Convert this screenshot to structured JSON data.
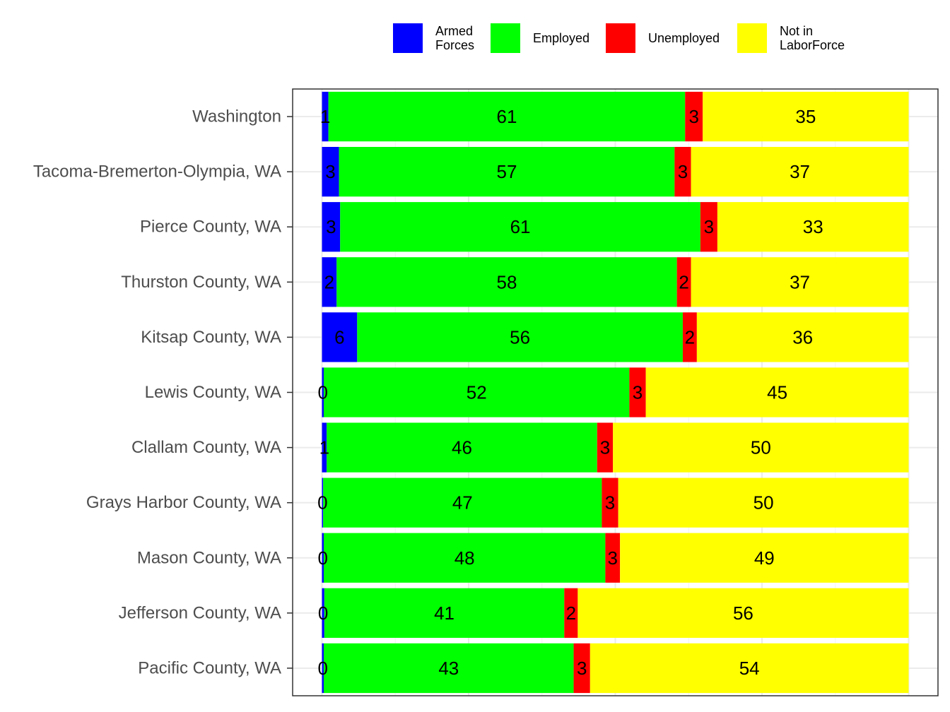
{
  "chart_data": {
    "type": "bar",
    "orientation": "horizontal",
    "stacked": true,
    "categories": [
      "Washington",
      "Tacoma-Bremerton-Olympia, WA",
      "Pierce County, WA",
      "Thurston County, WA",
      "Kitsap County, WA",
      "Lewis County, WA",
      "Clallam County, WA",
      "Grays Harbor County, WA",
      "Mason County, WA",
      "Jefferson County, WA",
      "Pacific County, WA"
    ],
    "series": [
      {
        "name": "Armed Forces",
        "legend_lines": [
          "Armed",
          "Forces"
        ],
        "color": "#0000ff",
        "values": [
          1.1,
          2.9,
          3.1,
          2.5,
          6.0,
          0.3,
          0.8,
          0.2,
          0.3,
          0.4,
          0.3
        ],
        "labels": [
          "1",
          "3",
          "3",
          "2",
          "6",
          "0",
          "1",
          "0",
          "0",
          "0",
          "0"
        ]
      },
      {
        "name": "Employed",
        "legend_lines": [
          "Employed"
        ],
        "color": "#00ff00",
        "values": [
          60.8,
          57.2,
          61.4,
          58.0,
          55.5,
          52.1,
          46.1,
          47.5,
          48.0,
          40.9,
          42.6
        ],
        "labels": [
          "61",
          "57",
          "61",
          "58",
          "56",
          "52",
          "46",
          "47",
          "48",
          "41",
          "43"
        ]
      },
      {
        "name": "Unemployed",
        "legend_lines": [
          "Unemployed"
        ],
        "color": "#ff0000",
        "values": [
          3.0,
          2.8,
          2.9,
          2.4,
          2.4,
          2.8,
          2.7,
          2.8,
          2.5,
          2.3,
          2.8
        ],
        "labels": [
          "3",
          "3",
          "3",
          "2",
          "2",
          "3",
          "3",
          "3",
          "3",
          "2",
          "3"
        ]
      },
      {
        "name": "Not in LaborForce",
        "legend_lines": [
          "Not in",
          "LaborForce"
        ],
        "color": "#ffff00",
        "values": [
          35.1,
          37.1,
          32.6,
          37.1,
          36.1,
          44.8,
          50.4,
          49.5,
          49.2,
          56.4,
          54.3
        ],
        "labels": [
          "35",
          "37",
          "33",
          "37",
          "36",
          "45",
          "50",
          "50",
          "49",
          "56",
          "54"
        ]
      }
    ],
    "xlim": [
      -5,
      105
    ],
    "grid": true,
    "legend_position": "top",
    "title": "",
    "xlabel": "",
    "ylabel": ""
  }
}
